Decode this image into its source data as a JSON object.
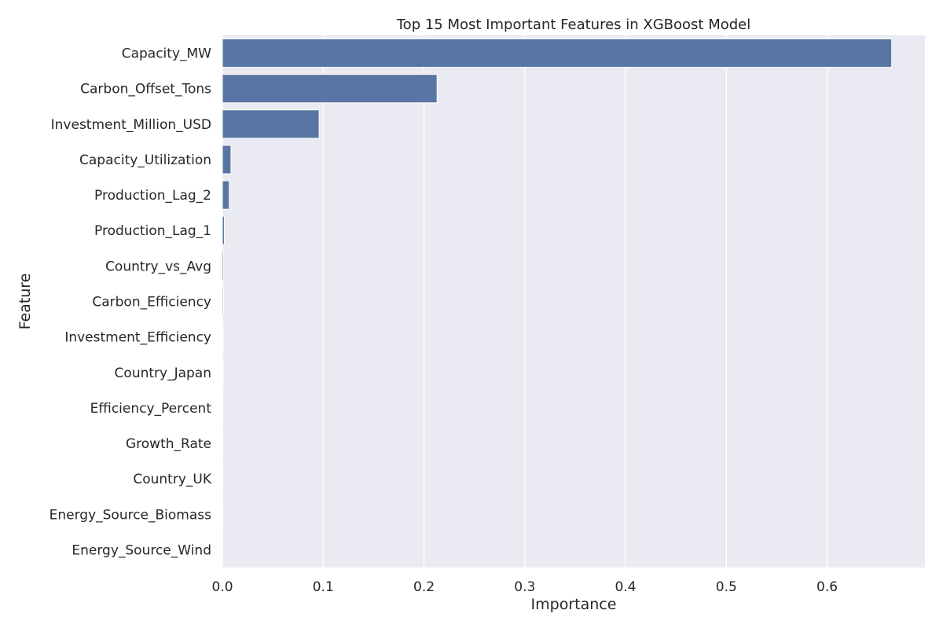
{
  "chart_data": {
    "type": "bar",
    "orientation": "horizontal",
    "title": "Top 15 Most Important Features in XGBoost Model",
    "xlabel": "Importance",
    "ylabel": "Feature",
    "categories": [
      "Capacity_MW",
      "Carbon_Offset_Tons",
      "Investment_Million_USD",
      "Capacity_Utilization",
      "Production_Lag_2",
      "Production_Lag_1",
      "Country_vs_Avg",
      "Carbon_Efficiency",
      "Investment_Efficiency",
      "Country_Japan",
      "Efficiency_Percent",
      "Growth_Rate",
      "Country_UK",
      "Energy_Source_Biomass",
      "Energy_Source_Wind"
    ],
    "values": [
      0.664,
      0.213,
      0.096,
      0.0085,
      0.0068,
      0.002,
      0.0012,
      0.001,
      0.0008,
      0.0006,
      0.0004,
      0.0003,
      0.0002,
      0.0002,
      0.0001
    ],
    "xlim": [
      0,
      0.697
    ],
    "xticks": [
      0.0,
      0.1,
      0.2,
      0.3,
      0.4,
      0.5,
      0.6
    ],
    "xtick_labels": [
      "0.0",
      "0.1",
      "0.2",
      "0.3",
      "0.4",
      "0.5",
      "0.6"
    ],
    "grid": true,
    "colors": {
      "bar": "#5975a4",
      "background": "#eaeaf2",
      "grid": "#ffffff",
      "text": "#262626"
    }
  }
}
